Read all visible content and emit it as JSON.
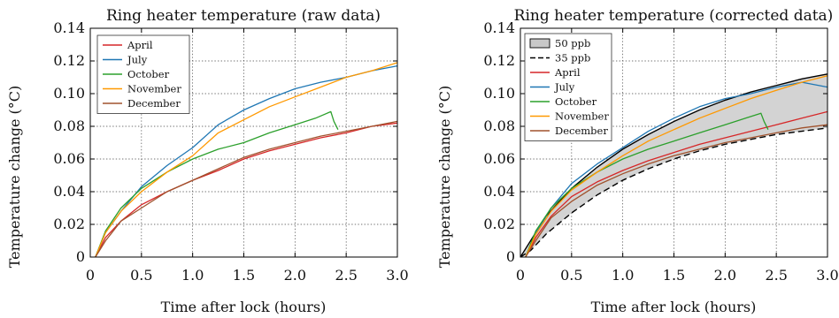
{
  "chart_data": [
    {
      "type": "line",
      "title": "Ring heater temperature (raw data)",
      "xlabel": "Time after lock (hours)",
      "ylabel": "Temperature change (°C)",
      "xlim": [
        0,
        3.0
      ],
      "ylim": [
        0,
        0.14
      ],
      "xticks": [
        "0",
        "0.5",
        "1.0",
        "1.5",
        "2.0",
        "2.5",
        "3.0"
      ],
      "yticks": [
        "0",
        "0.02",
        "0.04",
        "0.06",
        "0.08",
        "0.10",
        "0.12",
        "0.14"
      ],
      "grid": true,
      "legend_position": "top-left",
      "series": [
        {
          "name": "April",
          "color": "#d62728",
          "x": [
            0.05,
            0.15,
            0.3,
            0.5,
            0.75,
            1.0,
            1.25,
            1.5,
            1.75,
            2.0,
            2.25,
            2.5,
            2.75,
            3.0
          ],
          "y": [
            0.0,
            0.012,
            0.022,
            0.032,
            0.04,
            0.047,
            0.053,
            0.06,
            0.065,
            0.069,
            0.073,
            0.076,
            0.08,
            0.082
          ]
        },
        {
          "name": "July",
          "color": "#1f77b4",
          "x": [
            0.05,
            0.15,
            0.3,
            0.5,
            0.75,
            1.0,
            1.25,
            1.5,
            1.75,
            2.0,
            2.25,
            2.5,
            2.75,
            3.0
          ],
          "y": [
            0.0,
            0.015,
            0.028,
            0.043,
            0.056,
            0.067,
            0.081,
            0.09,
            0.097,
            0.103,
            0.107,
            0.11,
            0.114,
            0.117
          ]
        },
        {
          "name": "October",
          "color": "#2ca02c",
          "x": [
            0.05,
            0.15,
            0.3,
            0.5,
            0.75,
            1.0,
            1.25,
            1.5,
            1.75,
            2.0,
            2.2,
            2.35,
            2.38,
            2.42
          ],
          "y": [
            0.0,
            0.016,
            0.03,
            0.042,
            0.052,
            0.06,
            0.066,
            0.07,
            0.076,
            0.081,
            0.085,
            0.089,
            0.083,
            0.078
          ]
        },
        {
          "name": "November",
          "color": "#ff9900",
          "x": [
            0.05,
            0.15,
            0.3,
            0.5,
            0.75,
            1.0,
            1.25,
            1.5,
            1.75,
            2.0,
            2.25,
            2.5,
            2.75,
            3.0
          ],
          "y": [
            0.0,
            0.015,
            0.028,
            0.04,
            0.052,
            0.062,
            0.076,
            0.084,
            0.092,
            0.098,
            0.104,
            0.11,
            0.114,
            0.119
          ]
        },
        {
          "name": "December",
          "color": "#a0522d",
          "x": [
            0.05,
            0.15,
            0.3,
            0.5,
            0.75,
            1.0,
            1.25,
            1.5,
            1.75,
            2.0,
            2.25,
            2.5,
            2.75,
            3.0
          ],
          "y": [
            0.0,
            0.01,
            0.022,
            0.03,
            0.04,
            0.047,
            0.054,
            0.061,
            0.066,
            0.07,
            0.074,
            0.077,
            0.08,
            0.083
          ]
        }
      ]
    },
    {
      "type": "line",
      "title": "Ring heater temperature (corrected data)",
      "xlabel": "Time after lock (hours)",
      "ylabel": "Temperature change (°C)",
      "xlim": [
        0,
        3.0
      ],
      "ylim": [
        0,
        0.14
      ],
      "xticks": [
        "0",
        "0.5",
        "1.0",
        "1.5",
        "2.0",
        "2.5",
        "3.0"
      ],
      "yticks": [
        "0",
        "0.02",
        "0.04",
        "0.06",
        "0.08",
        "0.10",
        "0.12",
        "0.14"
      ],
      "grid": true,
      "legend_position": "top-left",
      "band": {
        "name": "50 ppb",
        "fill": "#d3d3d3",
        "x": [
          0,
          0.1,
          0.25,
          0.5,
          0.75,
          1.0,
          1.25,
          1.5,
          1.75,
          2.0,
          2.25,
          2.5,
          2.75,
          3.0
        ],
        "upper": [
          0,
          0.01,
          0.025,
          0.042,
          0.055,
          0.066,
          0.075,
          0.083,
          0.09,
          0.096,
          0.101,
          0.105,
          0.109,
          0.112
        ]
      },
      "band_lower_line": {
        "name": "35 ppb",
        "color": "#000000",
        "dashed": true,
        "x": [
          0,
          0.1,
          0.25,
          0.5,
          0.75,
          1.0,
          1.25,
          1.5,
          1.75,
          2.0,
          2.25,
          2.5,
          2.75,
          3.0
        ],
        "y": [
          0,
          0.004,
          0.014,
          0.027,
          0.038,
          0.047,
          0.054,
          0.06,
          0.065,
          0.069,
          0.072,
          0.075,
          0.077,
          0.079
        ]
      },
      "series": [
        {
          "name": "April",
          "color": "#d62728",
          "x": [
            0.05,
            0.15,
            0.3,
            0.5,
            0.75,
            1.0,
            1.25,
            1.5,
            1.75,
            2.0,
            2.25,
            2.5,
            2.75,
            3.0
          ],
          "y": [
            0.0,
            0.012,
            0.025,
            0.037,
            0.046,
            0.053,
            0.059,
            0.064,
            0.069,
            0.073,
            0.077,
            0.081,
            0.085,
            0.089
          ]
        },
        {
          "name": "July",
          "color": "#1f77b4",
          "x": [
            0.05,
            0.15,
            0.3,
            0.5,
            0.75,
            1.0,
            1.25,
            1.5,
            1.75,
            2.0,
            2.25,
            2.5,
            2.75,
            3.0
          ],
          "y": [
            0.0,
            0.015,
            0.03,
            0.045,
            0.057,
            0.067,
            0.077,
            0.085,
            0.092,
            0.097,
            0.1,
            0.104,
            0.107,
            0.104
          ]
        },
        {
          "name": "October",
          "color": "#2ca02c",
          "x": [
            0.05,
            0.15,
            0.3,
            0.5,
            0.75,
            1.0,
            1.25,
            1.5,
            1.75,
            2.0,
            2.2,
            2.35,
            2.38,
            2.42
          ],
          "y": [
            0.0,
            0.016,
            0.03,
            0.042,
            0.052,
            0.06,
            0.066,
            0.071,
            0.076,
            0.081,
            0.085,
            0.088,
            0.083,
            0.078
          ]
        },
        {
          "name": "November",
          "color": "#ff9900",
          "x": [
            0.05,
            0.15,
            0.3,
            0.5,
            0.75,
            1.0,
            1.25,
            1.5,
            1.75,
            2.0,
            2.25,
            2.5,
            2.75,
            3.0
          ],
          "y": [
            0.0,
            0.014,
            0.028,
            0.041,
            0.052,
            0.062,
            0.071,
            0.078,
            0.085,
            0.091,
            0.097,
            0.102,
            0.107,
            0.111
          ]
        },
        {
          "name": "December",
          "color": "#a0522d",
          "x": [
            0.05,
            0.15,
            0.3,
            0.5,
            0.75,
            1.0,
            1.25,
            1.5,
            1.75,
            2.0,
            2.25,
            2.5,
            2.75,
            3.0
          ],
          "y": [
            0.0,
            0.01,
            0.024,
            0.034,
            0.044,
            0.051,
            0.057,
            0.062,
            0.066,
            0.07,
            0.073,
            0.076,
            0.079,
            0.081
          ]
        }
      ]
    }
  ]
}
